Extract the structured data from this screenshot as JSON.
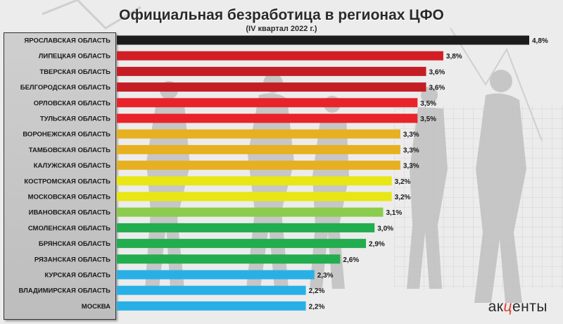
{
  "chart_data": {
    "type": "bar",
    "orientation": "horizontal",
    "title": "Официальная безработица в регионах ЦФО",
    "subtitle": "(IV квартал 2022 г.)",
    "categories": [
      "ЯРОСЛАВСКАЯ ОБЛАСТЬ",
      "ЛИПЕЦКАЯ ОБЛАСТЬ",
      "ТВЕРСКАЯ ОБЛАСТЬ",
      "БЕЛГОРОДСКАЯ ОБЛАСТЬ",
      "ОРЛОВСКАЯ ОБЛАСТЬ",
      "ТУЛЬСКАЯ ОБЛАСТЬ",
      "ВОРОНЕЖСКАЯ ОБЛАСТЬ",
      "ТАМБОВСКАЯ ОБЛАСТЬ",
      "КАЛУЖСКАЯ ОБЛАСТЬ",
      "КОСТРОМСКАЯ ОБЛАСТЬ",
      "МОСКОВСКАЯ ОБЛАСТЬ",
      "ИВАНОВСКАЯ ОБЛАСТЬ",
      "СМОЛЕНСКАЯ ОБЛАСТЬ",
      "БРЯНСКАЯ ОБЛАСТЬ",
      "РЯЗАНСКАЯ ОБЛАСТЬ",
      "КУРСКАЯ ОБЛАСТЬ",
      "ВЛАДИМИРСКАЯ ОБЛАСТЬ",
      "МОСКВА"
    ],
    "values": [
      4.8,
      3.8,
      3.6,
      3.6,
      3.5,
      3.5,
      3.3,
      3.3,
      3.3,
      3.2,
      3.2,
      3.1,
      3.0,
      2.9,
      2.6,
      2.3,
      2.2,
      2.2
    ],
    "value_labels": [
      "4,8%",
      "3,8%",
      "3,6%",
      "3,6%",
      "3,5%",
      "3,5%",
      "3,3%",
      "3,3%",
      "3,3%",
      "3,2%",
      "3,2%",
      "3,1%",
      "3,0%",
      "2,9%",
      "2,6%",
      "2,3%",
      "2,2%",
      "2,2%"
    ],
    "colors": [
      "#1c1c1c",
      "#d21f26",
      "#c41e24",
      "#c41e24",
      "#e8232a",
      "#e8232a",
      "#e6b020",
      "#e6b020",
      "#e6b020",
      "#e8e614",
      "#e8e614",
      "#8ccc4c",
      "#22ad4e",
      "#22ad4e",
      "#22ad4e",
      "#28b0e6",
      "#28b0e6",
      "#28b0e6"
    ],
    "xlim": [
      0,
      4.8
    ],
    "grid": false,
    "legend": "none"
  },
  "logo": {
    "pre": "ак",
    "accent": "ц",
    "post": "енты"
  }
}
